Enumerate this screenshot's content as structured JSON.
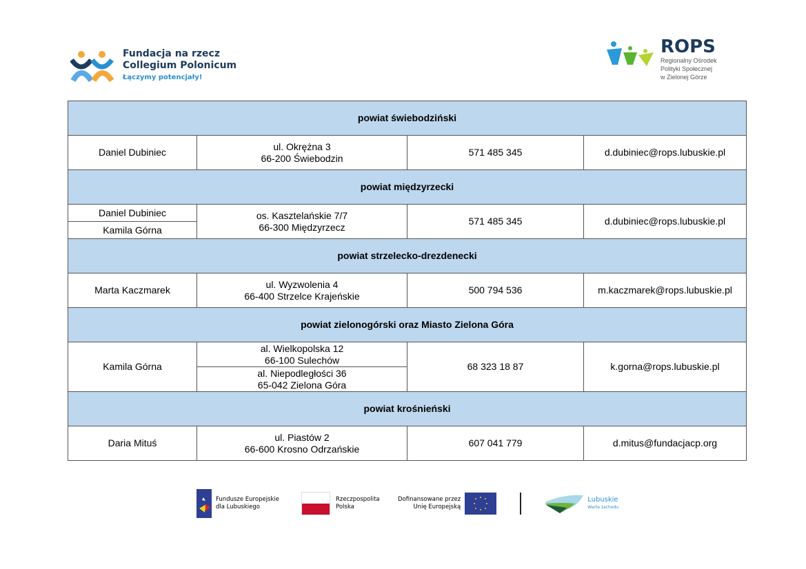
{
  "header": {
    "left_logo": {
      "line1": "Fundacja na rzecz",
      "line2": "Collegium Polonicum",
      "tagline": "Łączymy potencjały!"
    },
    "right_logo": {
      "title": "ROPS",
      "line1": "Regionalny Ośrodek",
      "line2": "Polityki Społecznej",
      "line3": "w Zielonej Górze"
    }
  },
  "table": {
    "sections": [
      {
        "title": "powiat świebodziński",
        "names": [
          "Daniel Dubiniec"
        ],
        "addresses": [
          [
            "ul. Okrężna 3",
            "66-200 Świebodzin"
          ]
        ],
        "phone": "571 485 345",
        "email": "d.dubiniec@rops.lubuskie.pl"
      },
      {
        "title": "powiat międzyrzecki",
        "names": [
          "Daniel Dubiniec",
          "Kamila Górna"
        ],
        "addresses": [
          [
            "os. Kasztelańskie 7/7",
            "66-300 Międzyrzecz"
          ]
        ],
        "phone": "571 485 345",
        "email": "d.dubiniec@rops.lubuskie.pl"
      },
      {
        "title": "powiat strzelecko-drezdenecki",
        "names": [
          "Marta Kaczmarek"
        ],
        "addresses": [
          [
            "ul. Wyzwolenia 4",
            "66-400 Strzelce Krajeńskie"
          ]
        ],
        "phone": "500 794 536",
        "email": "m.kaczmarek@rops.lubuskie.pl"
      },
      {
        "title": "powiat zielonogórski oraz Miasto Zielona Góra",
        "names": [
          "Kamila Górna"
        ],
        "addresses": [
          [
            "al. Wielkopolska 12",
            "66-100 Sulechów"
          ],
          [
            "al. Niepodległości 36",
            "65-042 Zielona Góra"
          ]
        ],
        "phone": "68 323 18 87",
        "email": "k.gorna@rops.lubuskie.pl"
      },
      {
        "title": "powiat krośnieński",
        "names": [
          "Daria Mituś"
        ],
        "addresses": [
          [
            "ul. Piastów 2",
            "66-600 Krosno Odrzańskie"
          ]
        ],
        "phone": "607 041 779",
        "email": "d.mitus@fundacjacp.org"
      }
    ]
  },
  "footer": {
    "fe": [
      "Fundusze Europejskie",
      "dla Lubuskiego"
    ],
    "rp": [
      "Rzeczpospolita",
      "Polska"
    ],
    "eu": [
      "Dofinansowane przez",
      "Unię Europejską"
    ],
    "lubuskie": [
      "Lubuskie",
      "Warte zachodu"
    ]
  },
  "colors": {
    "header_fill": "#bdd7ee",
    "flag_red": "#c8102e",
    "eu_blue": "#2e3f95"
  }
}
